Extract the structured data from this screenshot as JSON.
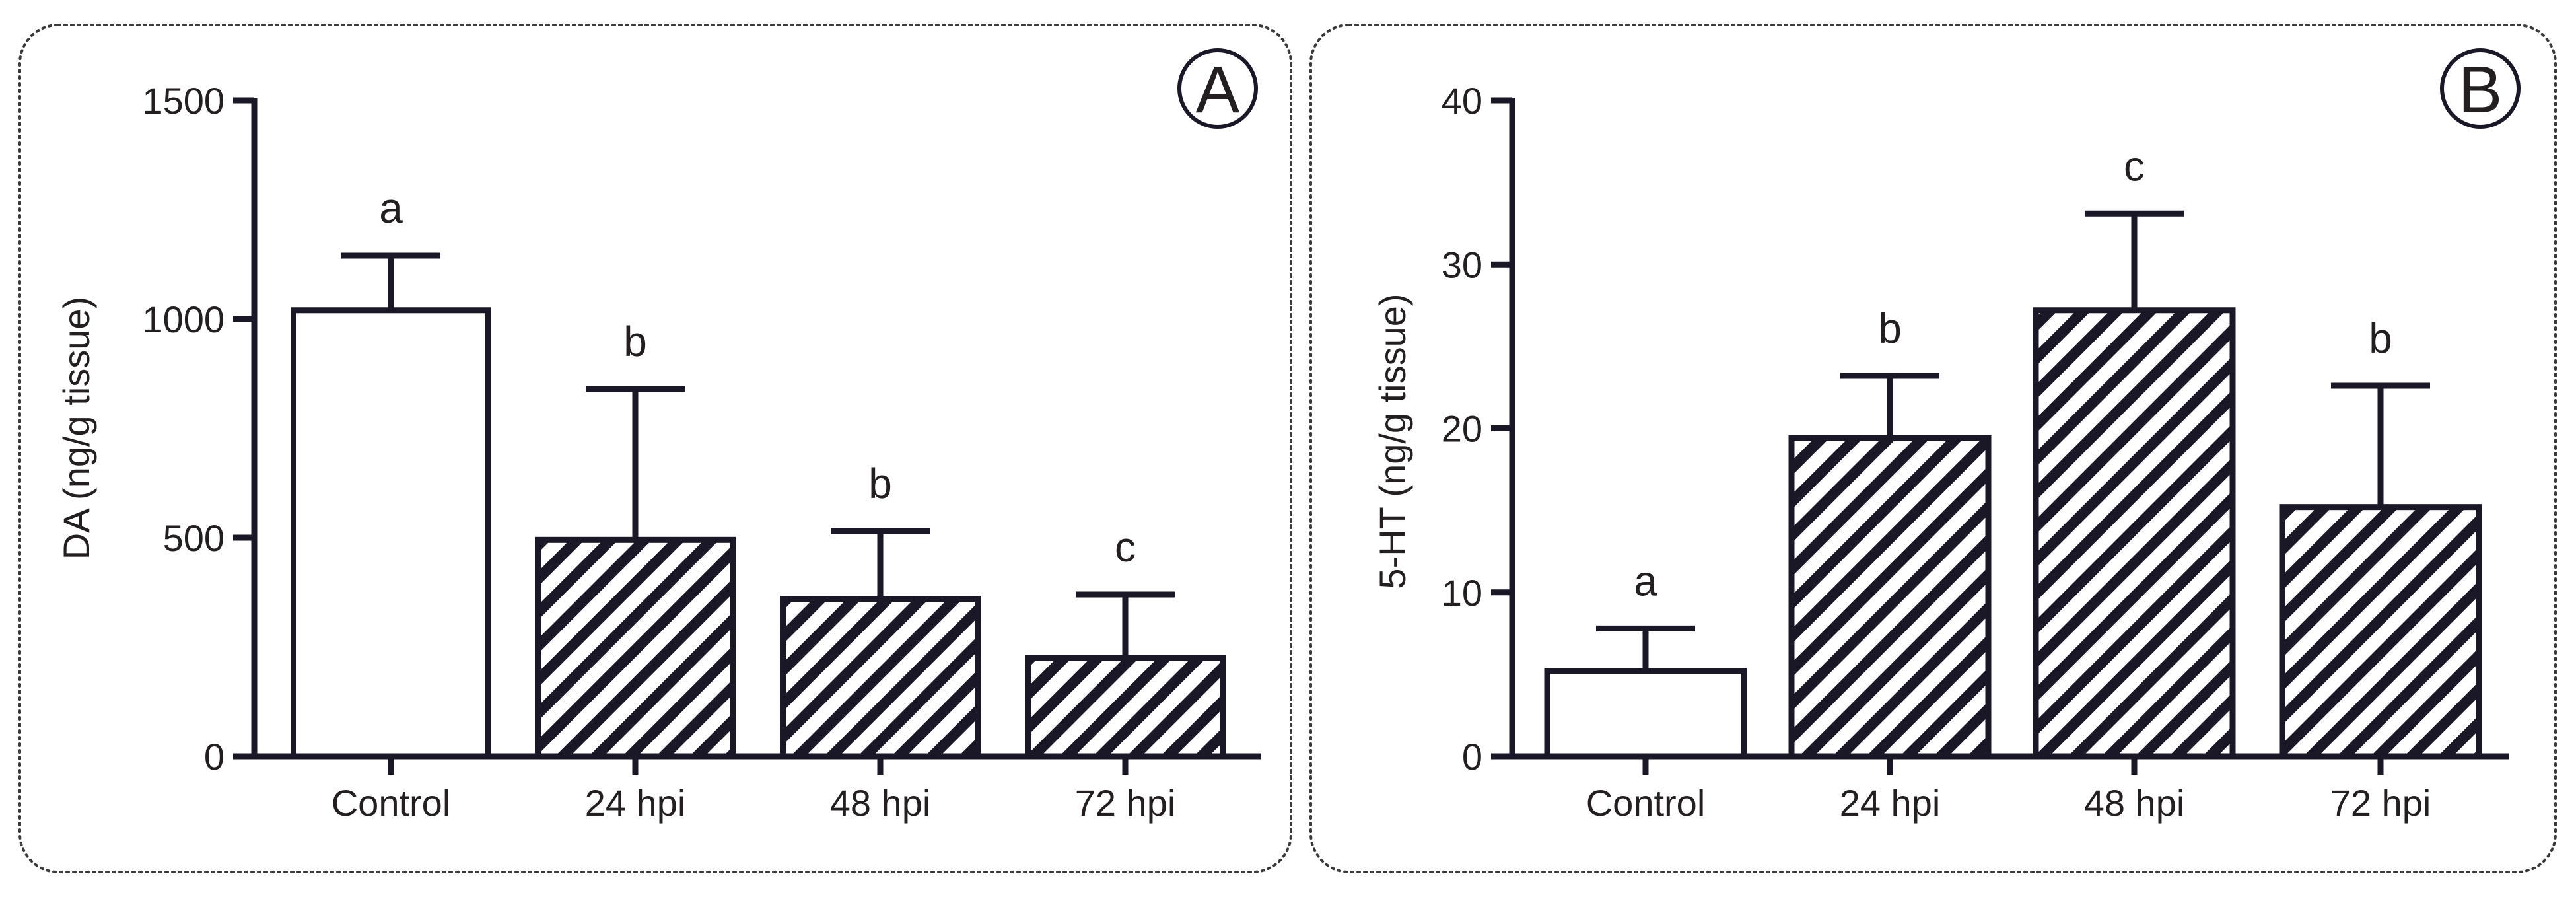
{
  "chart_data": [
    {
      "type": "bar",
      "panel_label": "A",
      "title": "",
      "xlabel": "",
      "ylabel": "DA (ng/g tissue)",
      "ylim": [
        0,
        1500
      ],
      "yticks": [
        0,
        500,
        1000,
        1500
      ],
      "yticks_text": [
        "0",
        "500",
        "1000",
        "1500"
      ],
      "grid": false,
      "categories": [
        "Control",
        "24 hpi",
        "48 hpi",
        "72 hpi"
      ],
      "values": [
        1020,
        495,
        360,
        225
      ],
      "errors": [
        125,
        345,
        155,
        145
      ],
      "significance": [
        "a",
        "b",
        "b",
        "c"
      ],
      "fills": [
        "open",
        "hatched",
        "hatched",
        "hatched"
      ]
    },
    {
      "type": "bar",
      "panel_label": "B",
      "title": "",
      "xlabel": "",
      "ylabel": "5-HT (ng/g tissue)",
      "ylim": [
        0,
        40
      ],
      "yticks": [
        0,
        10,
        20,
        30,
        40
      ],
      "yticks_text": [
        "0",
        "10",
        "20",
        "30",
        "40"
      ],
      "grid": false,
      "categories": [
        "Control",
        "24 hpi",
        "48 hpi",
        "72 hpi"
      ],
      "values": [
        5.2,
        19.4,
        27.2,
        15.2
      ],
      "errors": [
        2.6,
        3.8,
        5.9,
        7.4
      ],
      "significance": [
        "a",
        "b",
        "c",
        "b"
      ],
      "fills": [
        "open",
        "hatched",
        "hatched",
        "hatched"
      ]
    }
  ],
  "colors": {
    "ink": "#1a1726",
    "open_fill": "#ffffff",
    "hatch": "#1a1726"
  }
}
